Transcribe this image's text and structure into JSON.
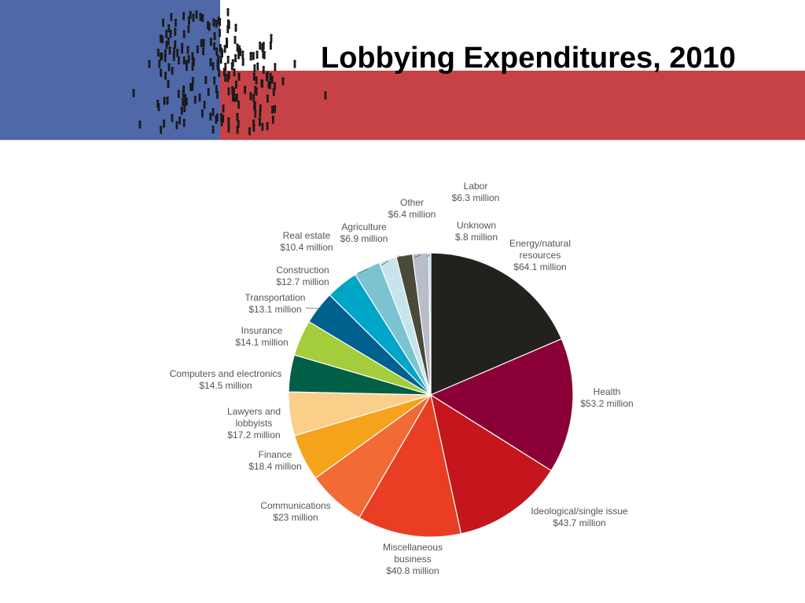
{
  "title": "Lobbying Expenditures, 2010",
  "colors": {
    "banner_blue": "#4f68a8",
    "banner_red": "#c64247",
    "label_text": "#555555"
  },
  "chart_data": {
    "type": "pie",
    "title": "",
    "unit": "$ million",
    "start": "12 o'clock, clockwise",
    "slices": [
      {
        "name": "Energy/natural resources",
        "value": 64.1,
        "label_lines": [
          "Energy/natural",
          "resources",
          "$64.1 million"
        ],
        "color": "#22211e"
      },
      {
        "name": "Health",
        "value": 53.2,
        "label_lines": [
          "Health",
          "$53.2 million"
        ],
        "color": "#8a0036"
      },
      {
        "name": "Ideological/single issue",
        "value": 43.7,
        "label_lines": [
          "Ideological/single issue",
          "$43.7 million"
        ],
        "color": "#c4161c"
      },
      {
        "name": "Miscellaneous business",
        "value": 40.8,
        "label_lines": [
          "Miscellaneous",
          "business",
          "$40.8 million"
        ],
        "color": "#e93e23"
      },
      {
        "name": "Communications",
        "value": 23,
        "label_lines": [
          "Communications",
          "$23 million"
        ],
        "color": "#f26b34"
      },
      {
        "name": "Finance",
        "value": 18.4,
        "label_lines": [
          "Finance",
          "$18.4 million"
        ],
        "color": "#f6a31c"
      },
      {
        "name": "Lawyers and lobbyists",
        "value": 17.2,
        "label_lines": [
          "Lawyers and",
          "lobbyists",
          "$17.2 million"
        ],
        "color": "#fbce8a"
      },
      {
        "name": "Computers and electronics",
        "value": 14.5,
        "label_lines": [
          "Computers and electronics",
          "$14.5 million"
        ],
        "color": "#005f46"
      },
      {
        "name": "Insurance",
        "value": 14.1,
        "label_lines": [
          "Insurance",
          "$14.1 million"
        ],
        "color": "#a4cc3b"
      },
      {
        "name": "Transportation",
        "value": 13.1,
        "label_lines": [
          "Transportation",
          "$13.1 million"
        ],
        "color": "#00618e"
      },
      {
        "name": "Construction",
        "value": 12.7,
        "label_lines": [
          "Construction",
          "$12.7 million"
        ],
        "color": "#00a5c8"
      },
      {
        "name": "Real estate",
        "value": 10.4,
        "label_lines": [
          "Real estate",
          "$10.4 million"
        ],
        "color": "#7cc3d2"
      },
      {
        "name": "Agriculture",
        "value": 6.9,
        "label_lines": [
          "Agriculture",
          "$6.9 million"
        ],
        "color": "#c7e4ea"
      },
      {
        "name": "Other",
        "value": 6.4,
        "label_lines": [
          "Other",
          "$6.4 million"
        ],
        "color": "#4a4a3b"
      },
      {
        "name": "Labor",
        "value": 6.3,
        "label_lines": [
          "Labor",
          "$6.3 million"
        ],
        "color": "#b8bccb"
      },
      {
        "name": "Unknown",
        "value": 0.8,
        "label_lines": [
          "Unknown",
          "$.8 million"
        ],
        "color": "#9fd6e6"
      }
    ]
  }
}
